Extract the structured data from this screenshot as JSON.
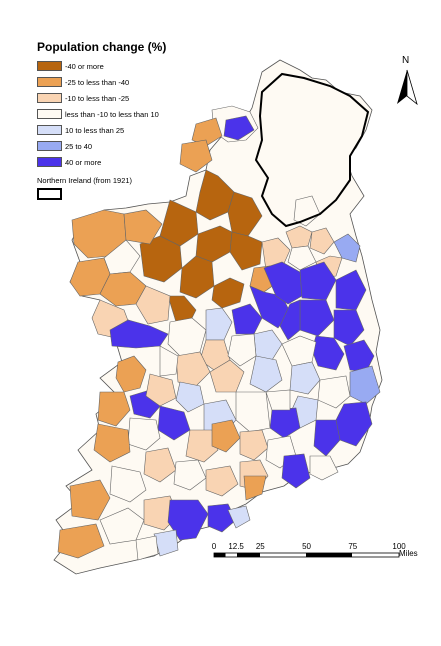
{
  "legend": {
    "title": "Population change (%)",
    "items": [
      {
        "label": "-40 or more",
        "color": "#b7650f"
      },
      {
        "label": "-25 to less than -40",
        "color": "#eba154"
      },
      {
        "label": "-10 to less than -25",
        "color": "#f9d4b3"
      },
      {
        "label": "less than -10 to less than 10",
        "color": "#fefaf3"
      },
      {
        "label": "10 to less than 25",
        "color": "#d5def8"
      },
      {
        "label": "25 to 40",
        "color": "#98aaf2"
      },
      {
        "label": "40 or more",
        "color": "#4b33ea"
      }
    ],
    "ni_label": "Northern Ireland (from 1921)"
  },
  "north_arrow": {
    "label": "N"
  },
  "scale": {
    "ticks": [
      "0",
      "12.5",
      "25",
      "50",
      "75",
      "100"
    ],
    "unit": "Miles"
  }
}
